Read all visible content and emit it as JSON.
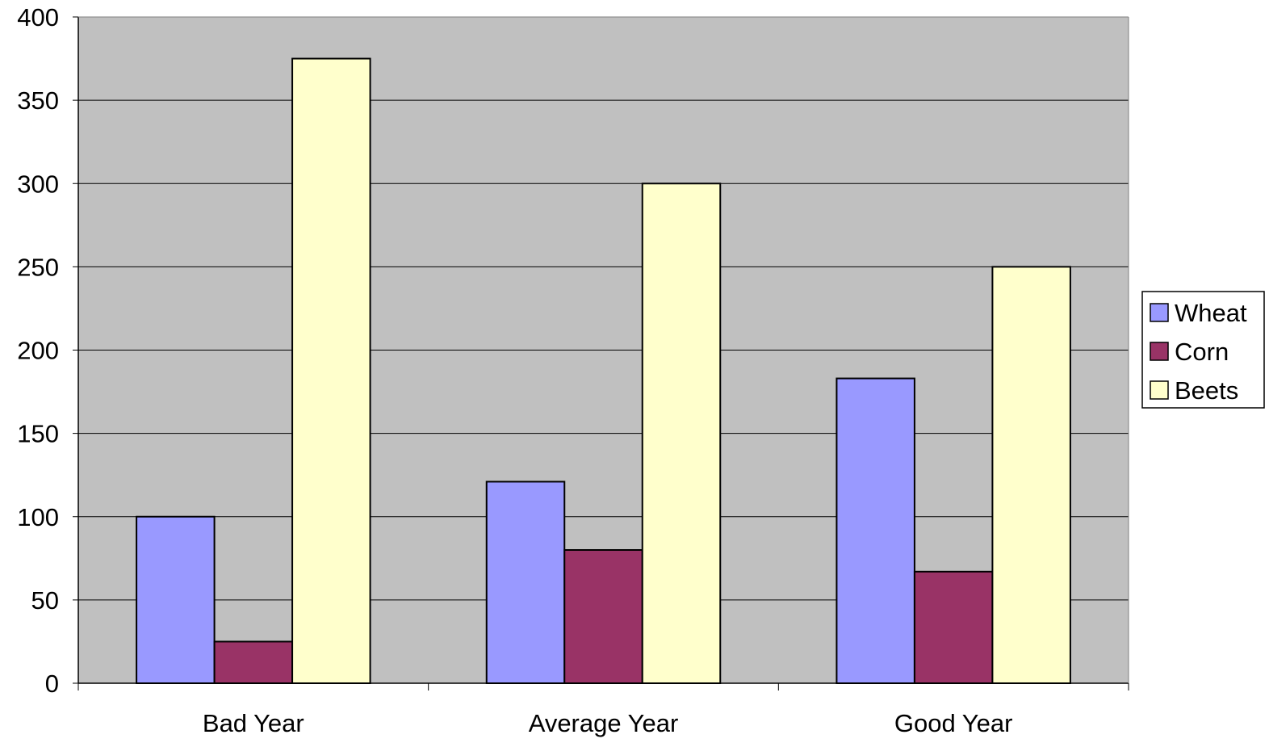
{
  "chart_data": {
    "type": "bar",
    "categories": [
      "Bad Year",
      "Average Year",
      "Good Year"
    ],
    "series": [
      {
        "name": "Wheat",
        "values": [
          100,
          121,
          183
        ]
      },
      {
        "name": "Corn",
        "values": [
          25,
          80,
          67
        ]
      },
      {
        "name": "Beets",
        "values": [
          375,
          300,
          250
        ]
      }
    ],
    "title": "",
    "xlabel": "",
    "ylabel": "",
    "ylim": [
      0,
      400
    ],
    "yticks": [
      "0",
      "50",
      "100",
      "150",
      "200",
      "250",
      "300",
      "350",
      "400"
    ],
    "grid": true,
    "legend_position": "right",
    "colors": {
      "plot_background": "#c0c0c0",
      "series": [
        "#9999ff",
        "#993366",
        "#ffffcc"
      ],
      "bar_outline": "#000000",
      "grid": "#000000"
    }
  }
}
